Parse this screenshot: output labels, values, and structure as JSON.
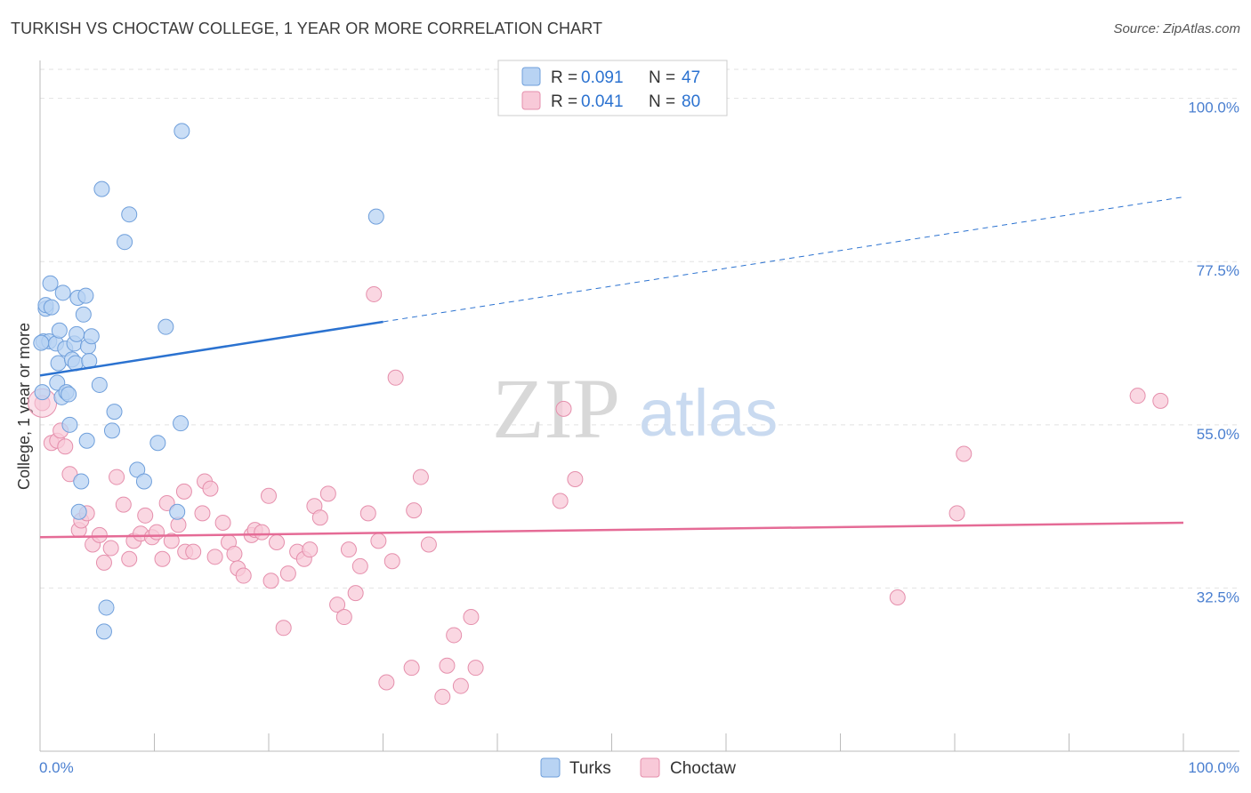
{
  "header": {
    "title": "TURKISH VS CHOCTAW COLLEGE, 1 YEAR OR MORE CORRELATION CHART",
    "source": "Source: ZipAtlas.com"
  },
  "watermark": {
    "zip": "ZIP",
    "atlas": "atlas"
  },
  "colors": {
    "turks_fill": "#b8d3f3",
    "turks_stroke": "#6f9fdb",
    "turks_line": "#2b72d0",
    "choctaw_fill": "#f8c9d8",
    "choctaw_stroke": "#e58fac",
    "choctaw_line": "#e56b96",
    "tick_text": "#4a7fd0",
    "grid": "#e2e2e2"
  },
  "legend": {
    "rows": [
      {
        "r_label": "R = ",
        "r_value": "0.091",
        "n_label": "N = ",
        "n_value": "47"
      },
      {
        "r_label": "R = ",
        "r_value": "0.041",
        "n_label": "N = ",
        "n_value": "80"
      }
    ]
  },
  "chart_data": {
    "type": "scatter",
    "title": "TURKISH VS CHOCTAW COLLEGE, 1 YEAR OR MORE CORRELATION CHART",
    "xlabel": "",
    "ylabel": "College, 1 year or more",
    "xlim": [
      0,
      100
    ],
    "ylim": [
      10,
      104
    ],
    "x_tick_labels": [
      "0.0%",
      "100.0%"
    ],
    "y_ticks": [
      {
        "value": 32.5,
        "label": "32.5%"
      },
      {
        "value": 55.0,
        "label": "55.0%"
      },
      {
        "value": 77.5,
        "label": "77.5%"
      },
      {
        "value": 100.0,
        "label": "100.0%"
      }
    ],
    "grid": "horizontal dashed",
    "legend_position": "top-center and bottom",
    "series": [
      {
        "name": "Turks",
        "r": 0.091,
        "n": 47,
        "trend": {
          "x0": 0,
          "y0": 61.8,
          "x1": 30,
          "y1": 69.2,
          "dashed_to_x": 100,
          "dashed_to_y": 86.4
        },
        "points": [
          [
            0.2,
            59.5
          ],
          [
            0.3,
            66.5
          ],
          [
            0.5,
            71.0
          ],
          [
            0.5,
            71.5
          ],
          [
            0.8,
            66.5
          ],
          [
            0.9,
            74.5
          ],
          [
            1.0,
            71.2
          ],
          [
            1.4,
            66.2
          ],
          [
            1.5,
            60.8
          ],
          [
            1.6,
            63.5
          ],
          [
            1.7,
            68.0
          ],
          [
            1.9,
            58.8
          ],
          [
            2.0,
            73.2
          ],
          [
            2.2,
            65.5
          ],
          [
            2.3,
            59.5
          ],
          [
            2.5,
            59.2
          ],
          [
            2.6,
            55.0
          ],
          [
            2.8,
            64.0
          ],
          [
            3.0,
            66.2
          ],
          [
            3.1,
            63.5
          ],
          [
            3.2,
            67.5
          ],
          [
            3.3,
            72.5
          ],
          [
            3.4,
            43.0
          ],
          [
            3.6,
            47.2
          ],
          [
            3.8,
            70.2
          ],
          [
            4.0,
            72.8
          ],
          [
            4.1,
            52.8
          ],
          [
            4.2,
            65.8
          ],
          [
            4.3,
            63.8
          ],
          [
            4.5,
            67.2
          ],
          [
            5.2,
            60.5
          ],
          [
            5.4,
            87.5
          ],
          [
            5.8,
            29.8
          ],
          [
            5.6,
            26.5
          ],
          [
            6.3,
            54.2
          ],
          [
            6.5,
            56.8
          ],
          [
            7.4,
            80.2
          ],
          [
            7.8,
            84.0
          ],
          [
            8.5,
            48.8
          ],
          [
            9.1,
            47.2
          ],
          [
            10.3,
            52.5
          ],
          [
            11.0,
            68.5
          ],
          [
            12.0,
            43.0
          ],
          [
            12.3,
            55.2
          ],
          [
            12.4,
            95.5
          ],
          [
            29.4,
            83.7
          ],
          [
            0.1,
            66.3
          ]
        ]
      },
      {
        "name": "Choctaw",
        "r": 0.041,
        "n": 80,
        "trend": {
          "x0": 0,
          "y0": 39.5,
          "x1": 100,
          "y1": 41.5
        },
        "points": [
          [
            0.2,
            58.0
          ],
          [
            1.0,
            52.5
          ],
          [
            1.5,
            52.8
          ],
          [
            1.8,
            54.2
          ],
          [
            2.2,
            52.0
          ],
          [
            2.6,
            48.2
          ],
          [
            3.4,
            40.5
          ],
          [
            3.6,
            41.8
          ],
          [
            4.1,
            42.8
          ],
          [
            4.6,
            38.5
          ],
          [
            5.2,
            39.8
          ],
          [
            5.6,
            36.0
          ],
          [
            6.2,
            38.0
          ],
          [
            6.7,
            47.8
          ],
          [
            7.3,
            44.0
          ],
          [
            7.8,
            36.5
          ],
          [
            8.2,
            39.0
          ],
          [
            8.8,
            40.0
          ],
          [
            9.2,
            42.5
          ],
          [
            9.8,
            39.5
          ],
          [
            10.2,
            40.2
          ],
          [
            10.7,
            36.5
          ],
          [
            11.1,
            44.2
          ],
          [
            11.5,
            39.0
          ],
          [
            12.1,
            41.2
          ],
          [
            12.6,
            45.8
          ],
          [
            12.7,
            37.5
          ],
          [
            13.4,
            37.5
          ],
          [
            14.2,
            42.8
          ],
          [
            14.4,
            47.2
          ],
          [
            14.9,
            46.2
          ],
          [
            15.3,
            36.8
          ],
          [
            16.0,
            41.5
          ],
          [
            16.5,
            38.8
          ],
          [
            17.0,
            37.2
          ],
          [
            17.3,
            35.2
          ],
          [
            17.8,
            34.2
          ],
          [
            18.5,
            39.8
          ],
          [
            18.8,
            40.5
          ],
          [
            19.4,
            40.2
          ],
          [
            20.0,
            45.2
          ],
          [
            20.2,
            33.5
          ],
          [
            20.7,
            38.8
          ],
          [
            21.3,
            27.0
          ],
          [
            21.7,
            34.5
          ],
          [
            22.5,
            37.5
          ],
          [
            23.1,
            36.5
          ],
          [
            23.6,
            37.8
          ],
          [
            24.0,
            43.8
          ],
          [
            24.5,
            42.2
          ],
          [
            25.2,
            45.5
          ],
          [
            26.0,
            30.2
          ],
          [
            26.6,
            28.5
          ],
          [
            27.0,
            37.8
          ],
          [
            27.6,
            31.8
          ],
          [
            28.0,
            35.5
          ],
          [
            28.7,
            42.8
          ],
          [
            29.2,
            73.0
          ],
          [
            29.6,
            39.0
          ],
          [
            30.3,
            19.5
          ],
          [
            30.8,
            36.2
          ],
          [
            31.1,
            61.5
          ],
          [
            32.5,
            21.5
          ],
          [
            32.7,
            43.2
          ],
          [
            33.3,
            47.8
          ],
          [
            34.0,
            38.5
          ],
          [
            35.2,
            17.5
          ],
          [
            35.6,
            21.8
          ],
          [
            36.2,
            26.0
          ],
          [
            36.8,
            19.0
          ],
          [
            37.7,
            28.5
          ],
          [
            38.1,
            21.5
          ],
          [
            45.5,
            44.5
          ],
          [
            45.8,
            57.2
          ],
          [
            46.8,
            47.5
          ],
          [
            75.0,
            31.2
          ],
          [
            80.2,
            42.8
          ],
          [
            80.8,
            51.0
          ],
          [
            96.0,
            59.0
          ],
          [
            98.0,
            58.3
          ]
        ]
      }
    ]
  },
  "bottom_legend": {
    "items": [
      {
        "label": "Turks"
      },
      {
        "label": "Choctaw"
      }
    ]
  }
}
